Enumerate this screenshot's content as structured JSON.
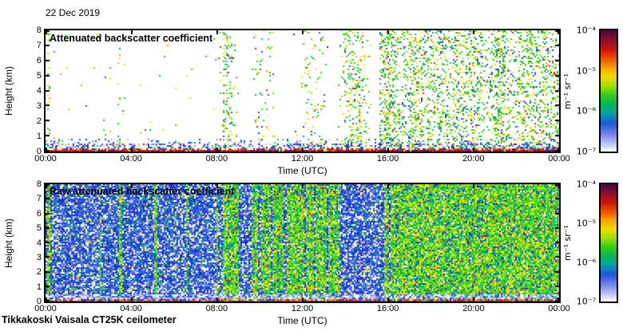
{
  "date_label": "22 Dec 2019",
  "footer_caption": "Tikkakoski Vaisala CT25K ceilometer",
  "colors": {
    "axis": "#000000",
    "background": "#ffffff"
  },
  "colorbar": {
    "unit": "m⁻¹ sr⁻¹",
    "tick_labels": [
      "10⁻⁴",
      "10⁻⁵",
      "10⁻⁶",
      "10⁻⁷"
    ],
    "scale": "log",
    "range_min": "1e-7",
    "range_max": "1e-4",
    "gradient": [
      "#46093f 0%",
      "#8c0f2e 8%",
      "#d21507 16%",
      "#ef5a00 24%",
      "#f6a400 31%",
      "#f2dc00 38%",
      "#9ee000 46%",
      "#2ecc1e 54%",
      "#00b45c 62%",
      "#00a8a0 68%",
      "#2256dc 77%",
      "#6f7fe8 85%",
      "#b9bff2 93%",
      "#ffffff 100%"
    ]
  },
  "palettes": {
    "specks": [
      [
        "#2fd01e",
        30
      ],
      [
        "#4ce02a",
        10
      ],
      [
        "#ece81c",
        20
      ],
      [
        "#a0e800",
        8
      ],
      [
        "#2b50e8",
        10
      ],
      [
        "#f5a800",
        7
      ],
      [
        "#00b078",
        6
      ],
      [
        "#00a8b0",
        3
      ],
      [
        "#e02800",
        2
      ],
      [
        "#1633cc",
        3
      ],
      [
        "#bcc2f5",
        1
      ]
    ],
    "blue_field": [
      [
        "#1633cc",
        20
      ],
      [
        "#2b50e8",
        24
      ],
      [
        "#3f64ea",
        12
      ],
      [
        "#7d8cee",
        10
      ],
      [
        "#bcc2f5",
        7
      ],
      [
        "#ffffff",
        16
      ],
      [
        "#2fd01e",
        4
      ],
      [
        "#00a8b0",
        2
      ],
      [
        "#ece81c",
        2
      ],
      [
        "#00b078",
        2
      ],
      [
        "#f5a800",
        1
      ]
    ],
    "green_field": [
      [
        "#2fd01e",
        24
      ],
      [
        "#4ce02a",
        12
      ],
      [
        "#a0e800",
        12
      ],
      [
        "#ece81c",
        16
      ],
      [
        "#00b078",
        8
      ],
      [
        "#00a8b0",
        5
      ],
      [
        "#2b50e8",
        8
      ],
      [
        "#1633cc",
        4
      ],
      [
        "#f5a800",
        4
      ],
      [
        "#ffffff",
        3
      ],
      [
        "#e02800",
        1
      ]
    ],
    "surface_red": [
      [
        "#a01010",
        28
      ],
      [
        "#e02800",
        30
      ],
      [
        "#701040",
        20
      ],
      [
        "#f06000",
        12
      ],
      [
        "#ece81c",
        5
      ],
      [
        "#1633cc",
        5
      ]
    ],
    "surface_mix": [
      [
        "#e02800",
        22
      ],
      [
        "#f06000",
        14
      ],
      [
        "#f5a800",
        10
      ],
      [
        "#2b50e8",
        16
      ],
      [
        "#1633cc",
        10
      ],
      [
        "#c0c0c0",
        10
      ],
      [
        "#ffffff",
        12
      ],
      [
        "#701040",
        6
      ]
    ],
    "surface_blue": [
      [
        "#2b50e8",
        30
      ],
      [
        "#1633cc",
        20
      ],
      [
        "#7d8cee",
        18
      ],
      [
        "#bcc2f5",
        12
      ],
      [
        "#c0c0c0",
        8
      ],
      [
        "#2fd01e",
        5
      ],
      [
        "#00a8b0",
        4
      ],
      [
        "#ece81c",
        3
      ]
    ],
    "surface_pale": [
      [
        "#ffffff",
        30
      ],
      [
        "#bcc2f5",
        25
      ],
      [
        "#7d8cee",
        18
      ],
      [
        "#c0c0c0",
        12
      ],
      [
        "#2b50e8",
        10
      ],
      [
        "#3f64ea",
        5
      ]
    ]
  },
  "chart_data": [
    {
      "type": "heatmap",
      "title": "Attenuated backscatter coefficient",
      "xlabel": "Time (UTC)",
      "ylabel": "Height (km)",
      "x_tick_labels": [
        "00:00",
        "04:00",
        "08:00",
        "12:00",
        "16:00",
        "20:00",
        "00:00"
      ],
      "x_tick_hours": [
        0,
        4,
        8,
        12,
        16,
        20,
        24
      ],
      "y_tick_labels": [
        "8",
        "7",
        "6",
        "5",
        "4",
        "3",
        "2",
        "1",
        "0"
      ],
      "y_ticks_km": [
        0,
        1,
        2,
        3,
        4,
        5,
        6,
        7,
        8
      ],
      "x_range_hours": [
        0,
        24
      ],
      "y_range_km": [
        0,
        8
      ],
      "value_unit": "m⁻¹ sr⁻¹",
      "value_range": [
        "1e-7",
        "1e-4"
      ],
      "seed": 11,
      "regions": [
        {
          "h0": 0,
          "h1": 8.3,
          "palette": "specks",
          "density": 0.006
        },
        {
          "h0": 8.3,
          "h1": 15.6,
          "palette": "specks",
          "density": 0.1,
          "banded": true
        },
        {
          "h0": 15.6,
          "h1": 24.01,
          "palette": "specks",
          "density": 0.27,
          "col_var": 0.35
        }
      ],
      "streaks": [
        {
          "at": 0.15,
          "w": 0.18,
          "palette": "specks",
          "density": 0.13
        },
        {
          "at": 3.0,
          "w": 0.1,
          "palette": "specks",
          "density": 0.05
        },
        {
          "at": 3.45,
          "w": 0.14,
          "palette": "specks",
          "density": 0.12
        },
        {
          "at": 6.6,
          "w": 0.08,
          "palette": "specks",
          "density": 0.04
        },
        {
          "at": 8.15,
          "w": 0.1,
          "palette": "specks",
          "density": 0.07
        }
      ],
      "surface_layers": [
        {
          "km0": 0,
          "km1": 0.12,
          "density": 1.0,
          "palette": "surface_red"
        },
        {
          "km0": 0.12,
          "km1": 0.26,
          "density": 0.75,
          "palette": "surface_mix"
        },
        {
          "km0": 0.26,
          "km1": 0.55,
          "density": 0.42,
          "palette": "surface_blue"
        },
        {
          "km0": 0.55,
          "km1": 0.85,
          "density": 0.12,
          "palette": "surface_blue"
        }
      ]
    },
    {
      "type": "heatmap",
      "title": "Raw attenuated backscatter coefficient",
      "xlabel": "Time (UTC)",
      "ylabel": "Height (km)",
      "x_tick_labels": [
        "00:00",
        "04:00",
        "08:00",
        "12:00",
        "16:00",
        "20:00",
        "00:00"
      ],
      "x_tick_hours": [
        0,
        4,
        8,
        12,
        16,
        20,
        24
      ],
      "y_tick_labels": [
        "8",
        "7",
        "6",
        "5",
        "4",
        "3",
        "2",
        "1",
        "0"
      ],
      "y_ticks_km": [
        0,
        1,
        2,
        3,
        4,
        5,
        6,
        7,
        8
      ],
      "x_range_hours": [
        0,
        24
      ],
      "y_range_km": [
        0,
        8
      ],
      "value_unit": "m⁻¹ sr⁻¹",
      "value_range": [
        "1e-7",
        "1e-4"
      ],
      "seed": 23,
      "regions": [
        {
          "h0": 0,
          "h1": 8.3,
          "palette": "blue_field",
          "density": 1
        },
        {
          "h0": 8.3,
          "h1": 9.05,
          "palette": "green_field",
          "density": 1
        },
        {
          "h0": 9.05,
          "h1": 9.65,
          "palette": "blue_field",
          "density": 1
        },
        {
          "h0": 9.65,
          "h1": 13.7,
          "palette": "green_field",
          "density": 1
        },
        {
          "h0": 13.7,
          "h1": 15.85,
          "palette": "blue_field",
          "density": 1
        },
        {
          "h0": 15.85,
          "h1": 24.01,
          "palette": "green_field",
          "density": 1
        }
      ],
      "streaks": [
        {
          "at": 0.15,
          "w": 0.12,
          "palette": "green_field",
          "density": 1
        },
        {
          "at": 2.6,
          "w": 0.1,
          "palette": "green_field",
          "density": 1
        },
        {
          "at": 3.5,
          "w": 0.16,
          "palette": "green_field",
          "density": 1
        },
        {
          "at": 5.15,
          "w": 0.1,
          "palette": "green_field",
          "density": 1
        },
        {
          "at": 6.6,
          "w": 0.07,
          "palette": "green_field",
          "density": 1
        },
        {
          "at": 8.0,
          "w": 0.08,
          "palette": "green_field",
          "density": 1
        },
        {
          "at": 10.0,
          "w": 0.1,
          "palette": "blue_field",
          "density": 1
        },
        {
          "at": 10.56,
          "w": 0.1,
          "palette": "blue_field",
          "density": 1
        },
        {
          "at": 11.2,
          "w": 0.08,
          "palette": "blue_field",
          "density": 1
        },
        {
          "at": 12.1,
          "w": 0.07,
          "palette": "blue_field",
          "density": 1
        },
        {
          "at": 12.55,
          "w": 0.07,
          "palette": "blue_field",
          "density": 1
        },
        {
          "at": 13.2,
          "w": 0.05,
          "palette": "blue_field",
          "density": 1
        },
        {
          "at": 16.1,
          "w": 0.08,
          "palette": "blue_field",
          "density": 1
        }
      ],
      "surface_layers": [
        {
          "km0": 0,
          "km1": 0.1,
          "density": 1.0,
          "palette": "surface_red"
        },
        {
          "km0": 0.1,
          "km1": 0.2,
          "density": 0.7,
          "palette": "surface_mix"
        },
        {
          "km0": 0.2,
          "km1": 0.5,
          "density": 0.8,
          "palette": "surface_pale"
        }
      ]
    }
  ]
}
